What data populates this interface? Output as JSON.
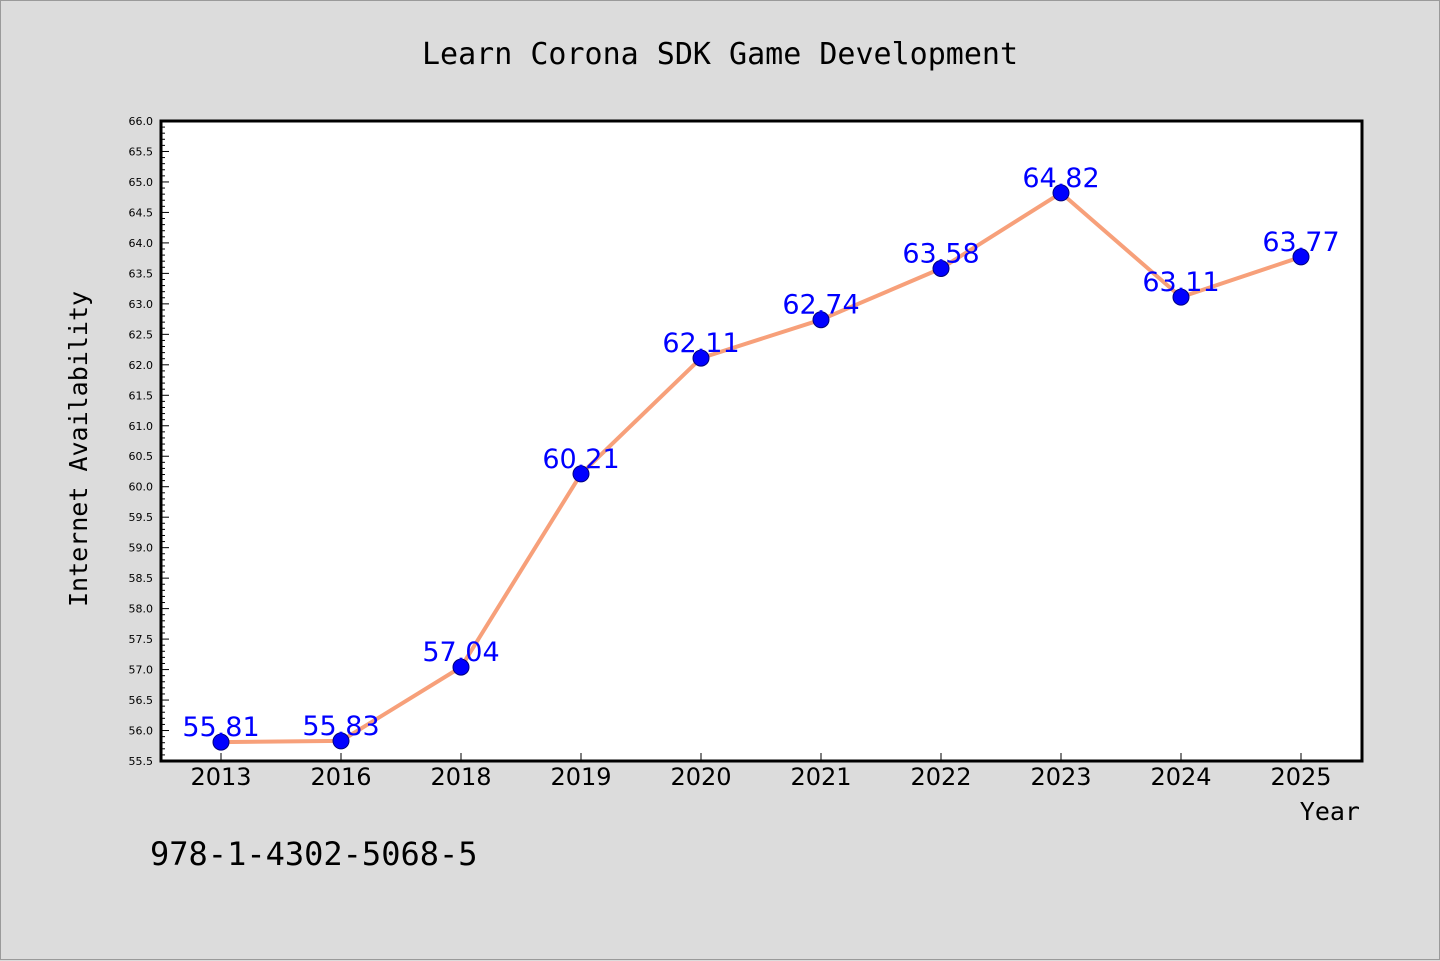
{
  "isbn": "978-1-4302-5068-5",
  "colors": {
    "background": "#dcdcdc",
    "plot_area": "#ffffff",
    "line": "#f7a07a",
    "marker": "#0000ff",
    "data_label": "#0000ff"
  },
  "chart_data": {
    "type": "line",
    "title": "Learn Corona SDK Game Development",
    "xlabel": "Year",
    "ylabel": "Internet Availability",
    "categories": [
      "2013",
      "2016",
      "2018",
      "2019",
      "2020",
      "2021",
      "2022",
      "2023",
      "2024",
      "2025"
    ],
    "series": [
      {
        "values": [
          55.81,
          55.83,
          57.04,
          60.21,
          62.11,
          62.74,
          63.58,
          64.82,
          63.11,
          63.77
        ],
        "marker": "circle"
      }
    ],
    "data_labels": [
      "55.81",
      "55.83",
      "57.04",
      "60.21",
      "62.11",
      "62.74",
      "63.58",
      "64.82",
      "63.11",
      "63.77"
    ],
    "ylim": [
      55.5,
      66.0
    ],
    "yticks": [
      "55.5",
      "56.0",
      "56.5",
      "57.0",
      "57.5",
      "58.0",
      "58.5",
      "59.0",
      "59.5",
      "60.0",
      "60.5",
      "61.0",
      "61.5",
      "62.0",
      "62.5",
      "63.0",
      "63.5",
      "64.0",
      "64.5",
      "65.0",
      "65.5",
      "66.0"
    ],
    "grid": false,
    "legend": "none"
  }
}
